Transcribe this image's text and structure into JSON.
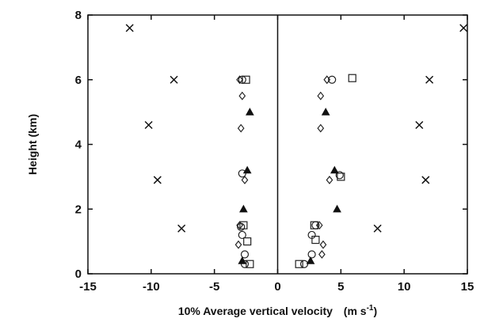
{
  "chart_data": {
    "type": "scatter",
    "xlabel": "10% Average vertical velocity",
    "xlabel_unit_base": "(m s",
    "xlabel_unit_exp": "-1",
    "xlabel_unit_close": ")",
    "ylabel": "Height (km)",
    "xlim": [
      -15,
      15
    ],
    "ylim": [
      0,
      8
    ],
    "x_ticks": [
      -15,
      -10,
      -5,
      0,
      5,
      10,
      15
    ],
    "x_tick_labels": [
      "-15",
      "-10",
      "-5",
      "0",
      "5",
      "10",
      "15"
    ],
    "y_ticks": [
      0,
      2,
      4,
      6,
      8
    ],
    "y_tick_labels": [
      "0",
      "2",
      "4",
      "6",
      "8"
    ],
    "grid": false,
    "series": [
      {
        "marker": "cross",
        "points": [
          [
            -11.7,
            7.6
          ],
          [
            -8.2,
            6.0
          ],
          [
            -10.2,
            4.6
          ],
          [
            -9.5,
            2.9
          ],
          [
            -7.6,
            1.4
          ],
          [
            14.7,
            7.6
          ],
          [
            12.0,
            6.0
          ],
          [
            11.2,
            4.6
          ],
          [
            11.7,
            2.9
          ],
          [
            7.9,
            1.4
          ]
        ]
      },
      {
        "marker": "circle",
        "points": [
          [
            -2.8,
            6.0
          ],
          [
            -2.8,
            3.1
          ],
          [
            -2.9,
            1.45
          ],
          [
            -2.8,
            1.2
          ],
          [
            -2.6,
            0.6
          ],
          [
            -2.6,
            0.3
          ],
          [
            4.3,
            6.0
          ],
          [
            4.9,
            3.05
          ],
          [
            3.0,
            1.5
          ],
          [
            2.7,
            1.2
          ],
          [
            2.7,
            0.6
          ],
          [
            2.1,
            0.3
          ]
        ]
      },
      {
        "marker": "diamond",
        "points": [
          [
            -3.0,
            6.0
          ],
          [
            -2.8,
            5.5
          ],
          [
            -2.9,
            4.5
          ],
          [
            -2.6,
            2.9
          ],
          [
            -3.0,
            1.5
          ],
          [
            -3.1,
            0.9
          ],
          [
            3.9,
            6.0
          ],
          [
            3.4,
            5.5
          ],
          [
            3.4,
            4.5
          ],
          [
            4.1,
            2.9
          ],
          [
            3.3,
            1.5
          ],
          [
            3.6,
            0.9
          ],
          [
            3.5,
            0.6
          ]
        ]
      },
      {
        "marker": "square",
        "points": [
          [
            -2.5,
            6.0
          ],
          [
            -2.7,
            1.5
          ],
          [
            -2.4,
            1.0
          ],
          [
            -2.2,
            0.3
          ],
          [
            5.9,
            6.05
          ],
          [
            5.0,
            3.0
          ],
          [
            2.9,
            1.5
          ],
          [
            3.0,
            1.05
          ],
          [
            1.7,
            0.3
          ]
        ]
      },
      {
        "marker": "triangle",
        "points": [
          [
            -2.2,
            5.0
          ],
          [
            -2.4,
            3.2
          ],
          [
            -2.7,
            2.0
          ],
          [
            -2.8,
            0.4
          ],
          [
            3.8,
            5.0
          ],
          [
            4.5,
            3.2
          ],
          [
            4.7,
            2.0
          ],
          [
            2.6,
            0.4
          ]
        ]
      }
    ]
  }
}
